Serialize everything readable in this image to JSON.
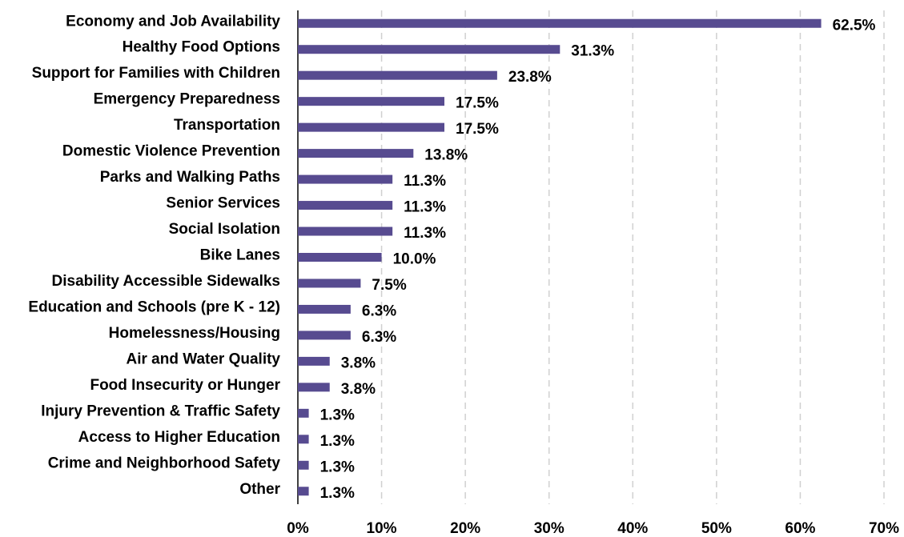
{
  "chart_data": {
    "type": "bar",
    "orientation": "horizontal",
    "categories": [
      "Economy and Job Availability",
      "Healthy Food Options",
      "Support for Families with Children",
      "Emergency Preparedness",
      "Transportation",
      "Domestic Violence Prevention",
      "Parks and Walking Paths",
      "Senior Services",
      "Social Isolation",
      "Bike Lanes",
      "Disability Accessible Sidewalks",
      "Education and Schools (pre K - 12)",
      "Homelessness/Housing",
      "Air and Water Quality",
      "Food Insecurity or Hunger",
      "Injury Prevention & Traffic Safety",
      "Access to Higher Education",
      "Crime and Neighborhood Safety",
      "Other"
    ],
    "values": [
      62.5,
      31.3,
      23.8,
      17.5,
      17.5,
      13.8,
      11.3,
      11.3,
      11.3,
      10.0,
      7.5,
      6.3,
      6.3,
      3.8,
      3.8,
      1.3,
      1.3,
      1.3,
      1.3
    ],
    "value_labels": [
      "62.5%",
      "31.3%",
      "23.8%",
      "17.5%",
      "17.5%",
      "13.8%",
      "11.3%",
      "11.3%",
      "11.3%",
      "10.0%",
      "7.5%",
      "6.3%",
      "6.3%",
      "3.8%",
      "3.8%",
      "1.3%",
      "1.3%",
      "1.3%",
      "1.3%"
    ],
    "color": "#574b90",
    "xlim": [
      0,
      70
    ],
    "xticks": [
      {
        "value": 0,
        "label": "0%"
      },
      {
        "value": 10,
        "label": "10%"
      },
      {
        "value": 20,
        "label": "20%"
      },
      {
        "value": 30,
        "label": "30%"
      },
      {
        "value": 40,
        "label": "40%"
      },
      {
        "value": 50,
        "label": "50%"
      },
      {
        "value": 60,
        "label": "60%"
      },
      {
        "value": 70,
        "label": "70%"
      }
    ],
    "grid": true
  }
}
